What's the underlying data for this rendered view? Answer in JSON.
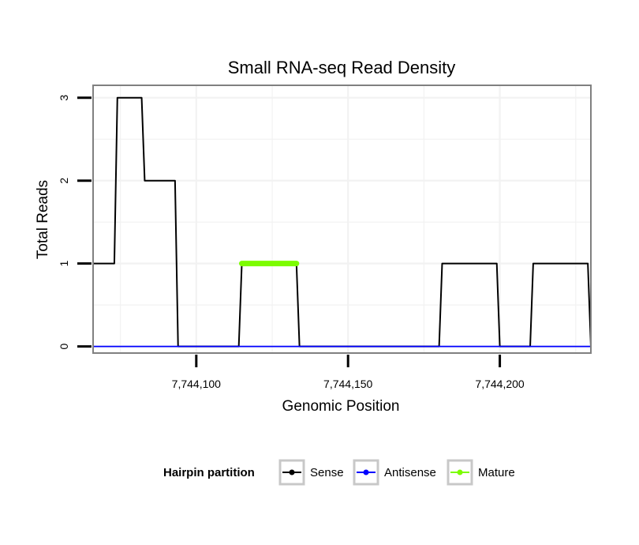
{
  "chart_data": {
    "type": "line",
    "title": "Small RNA-seq Read Density",
    "xlabel": "Genomic Position",
    "ylabel": "Total Reads",
    "xlim": [
      7744066,
      7744230
    ],
    "ylim": [
      -0.08,
      3.15
    ],
    "x_ticks": [
      7744100,
      7744150,
      7744200
    ],
    "x_tick_labels": [
      "7,744,100",
      "7,744,150",
      "7,744,200"
    ],
    "y_ticks": [
      0,
      1,
      2,
      3
    ],
    "y_tick_labels": [
      "0",
      "1",
      "2",
      "3"
    ],
    "grid": true,
    "legend": {
      "title": "Hairpin partition",
      "position": "bottom",
      "entries": [
        "Sense",
        "Antisense",
        "Mature"
      ]
    },
    "series": [
      {
        "name": "Sense",
        "color": "#000000",
        "x": [
          7744066,
          7744073,
          7744074,
          7744082,
          7744083,
          7744093,
          7744094,
          7744114,
          7744115,
          7744133,
          7744134,
          7744180,
          7744181,
          7744199,
          7744200,
          7744210,
          7744211,
          7744229,
          7744230
        ],
        "y": [
          1,
          1,
          3,
          3,
          2,
          2,
          0,
          0,
          1,
          1,
          0,
          0,
          1,
          1,
          0,
          0,
          1,
          1,
          0
        ]
      },
      {
        "name": "Antisense",
        "color": "#0000ff",
        "x": [
          7744066,
          7744230
        ],
        "y": [
          0,
          0
        ]
      },
      {
        "name": "Mature",
        "color": "#7cfc00",
        "x": [
          7744115,
          7744133
        ],
        "y": [
          1,
          1
        ]
      }
    ]
  }
}
